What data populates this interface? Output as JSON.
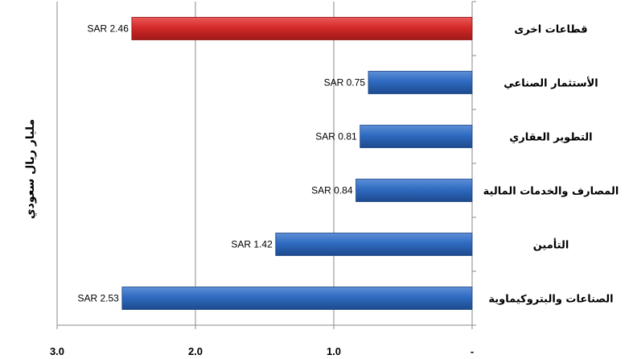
{
  "chart_data": {
    "type": "bar",
    "orientation": "horizontal",
    "x_reversed": true,
    "categories": [
      "قطاعات اخرى",
      "الأستثمار الصناعي",
      "التطوير العقاري",
      "المصارف والخدمات المالية",
      "التأمين",
      "الصناعات والبتروكيماوية"
    ],
    "values": [
      2.46,
      0.75,
      0.81,
      0.84,
      1.42,
      2.53
    ],
    "data_labels": [
      "SAR 2.46",
      "SAR 0.75",
      "SAR 0.81",
      "SAR 0.84",
      "SAR 1.42",
      "SAR 2.53"
    ],
    "bar_colors": [
      "#d42a2a",
      "#2f6bc0",
      "#2f6bc0",
      "#2f6bc0",
      "#2f6bc0",
      "#2f6bc0"
    ],
    "xlim": [
      0,
      3.0
    ],
    "xticks": [
      3.0,
      2.0,
      1.0,
      0
    ],
    "xtick_labels": [
      "3.0",
      "2.0",
      "1.0",
      "-"
    ],
    "ylabel": "مليار ريال سعودي",
    "xlabel": "",
    "title": "",
    "grid": "vertical-major",
    "legend": "none"
  }
}
